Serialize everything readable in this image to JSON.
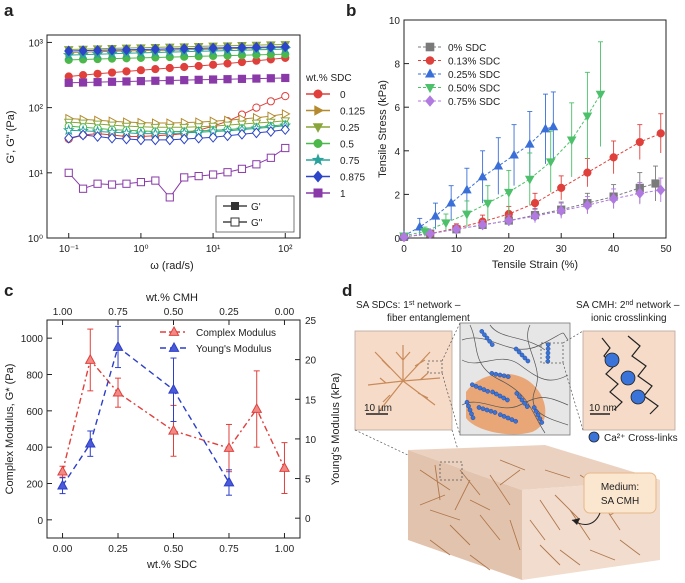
{
  "panels": {
    "a": "a",
    "b": "b",
    "c": "c",
    "d": "d"
  },
  "chart_data": [
    {
      "id": "a",
      "type": "scatter",
      "xlabel": "ω (rad/s)",
      "ylabel": "G', G\" (Pa)",
      "xscale": "log",
      "yscale": "log",
      "xlim": [
        0.05,
        160
      ],
      "ylim": [
        1,
        1300
      ],
      "xticks": [
        "10⁻¹",
        "10⁰",
        "10¹",
        "10²"
      ],
      "yticks": [
        "10⁰",
        "10¹",
        "10²",
        "10³"
      ],
      "legend_title": "wt.% SDC",
      "legend2": [
        "G'",
        "G\""
      ],
      "x": [
        0.1,
        0.158,
        0.251,
        0.398,
        0.631,
        1.0,
        1.585,
        2.512,
        3.981,
        6.31,
        10.0,
        15.85,
        25.12,
        39.81,
        63.1,
        100.0
      ],
      "series": [
        {
          "name": "0",
          "color": "#e0403c",
          "marker": "circle",
          "gp": [
            300,
            315,
            330,
            345,
            360,
            375,
            390,
            405,
            420,
            435,
            455,
            475,
            500,
            525,
            550,
            580
          ],
          "gpp": [
            33,
            38,
            40,
            38,
            36,
            36,
            37,
            38,
            40,
            45,
            52,
            62,
            78,
            100,
            125,
            150
          ]
        },
        {
          "name": "0.125",
          "color": "#b58a2e",
          "marker": "triangle-right",
          "gp": [
            700,
            710,
            720,
            730,
            740,
            750,
            755,
            760,
            770,
            780,
            790,
            800,
            810,
            820,
            830,
            840
          ],
          "gpp": [
            68,
            66,
            64,
            62,
            60,
            59,
            58,
            58,
            59,
            60,
            62,
            64,
            67,
            70,
            74,
            80
          ]
        },
        {
          "name": "0.25",
          "color": "#8aa63a",
          "marker": "triangle-down",
          "gp": [
            780,
            790,
            800,
            810,
            820,
            830,
            840,
            850,
            860,
            870,
            880,
            890,
            900,
            910,
            920,
            930
          ],
          "gpp": [
            60,
            58,
            56,
            54,
            52,
            51,
            50,
            50,
            50,
            51,
            52,
            54,
            56,
            58,
            60,
            63
          ]
        },
        {
          "name": "0.5",
          "color": "#4cb84a",
          "marker": "circle",
          "gp": [
            540,
            548,
            556,
            564,
            572,
            580,
            588,
            596,
            604,
            612,
            620,
            628,
            636,
            644,
            652,
            660
          ],
          "gpp": [
            52,
            50,
            48,
            46,
            45,
            44,
            43,
            43,
            43,
            44,
            45,
            46,
            48,
            50,
            52,
            55
          ]
        },
        {
          "name": "0.75",
          "color": "#2aa39c",
          "marker": "star",
          "gp": [
            640,
            650,
            660,
            670,
            680,
            690,
            700,
            710,
            720,
            730,
            740,
            750,
            760,
            770,
            780,
            790
          ],
          "gpp": [
            45,
            44,
            43,
            42,
            41,
            40,
            40,
            40,
            41,
            42,
            43,
            44,
            46,
            48,
            50,
            53
          ]
        },
        {
          "name": "0.875",
          "color": "#2d45c8",
          "marker": "diamond",
          "gp": [
            740,
            748,
            756,
            764,
            772,
            780,
            788,
            796,
            804,
            812,
            820,
            828,
            836,
            844,
            852,
            860
          ],
          "gpp": [
            34,
            38,
            36,
            34,
            33,
            32,
            32,
            32,
            33,
            34,
            35,
            37,
            39,
            41,
            43,
            46
          ]
        },
        {
          "name": "1",
          "color": "#8a3aa8",
          "marker": "square",
          "gp": [
            240,
            243,
            246,
            249,
            252,
            255,
            258,
            261,
            264,
            267,
            270,
            273,
            276,
            279,
            282,
            285
          ],
          "gpp": [
            10,
            5.7,
            6.8,
            6.6,
            6.8,
            7.2,
            7.6,
            4.2,
            8.5,
            8.9,
            9.4,
            10.2,
            11.5,
            13.5,
            17.0,
            24.0
          ]
        }
      ]
    },
    {
      "id": "b",
      "type": "line",
      "xlabel": "Tensile Strain (%)",
      "ylabel": "Tensile Stress (kPa)",
      "xlim": [
        0,
        50
      ],
      "ylim": [
        0,
        10
      ],
      "xticks": [
        "0",
        "10",
        "20",
        "30",
        "40",
        "50"
      ],
      "yticks": [
        "0",
        "2",
        "4",
        "6",
        "8",
        "10"
      ],
      "series": [
        {
          "name": "0% SDC",
          "color": "#7a7a7a",
          "marker": "square",
          "points": [
            [
              0,
              0.05
            ],
            [
              5,
              0.2
            ],
            [
              10,
              0.4
            ],
            [
              15,
              0.6
            ],
            [
              20,
              0.8
            ],
            [
              25,
              1.05
            ],
            [
              30,
              1.3
            ],
            [
              35,
              1.6
            ],
            [
              40,
              1.9
            ],
            [
              45,
              2.3
            ],
            [
              48,
              2.5
            ]
          ],
          "err": [
            0.05,
            0.1,
            0.15,
            0.2,
            0.25,
            0.3,
            0.35,
            0.45,
            0.55,
            0.7,
            0.8
          ]
        },
        {
          "name": "0.13% SDC",
          "color": "#e0403c",
          "marker": "circle",
          "points": [
            [
              0,
              0.05
            ],
            [
              5,
              0.2
            ],
            [
              10,
              0.45
            ],
            [
              15,
              0.75
            ],
            [
              20,
              1.1
            ],
            [
              25,
              1.6
            ],
            [
              30,
              2.3
            ],
            [
              35,
              3.0
            ],
            [
              40,
              3.7
            ],
            [
              45,
              4.4
            ],
            [
              49,
              4.8
            ]
          ],
          "err": [
            0.05,
            0.1,
            0.2,
            0.3,
            0.35,
            0.45,
            0.55,
            0.65,
            0.75,
            0.8,
            0.9
          ]
        },
        {
          "name": "0.25% SDC",
          "color": "#3a6fd8",
          "marker": "triangle-up",
          "points": [
            [
              0,
              0.1
            ],
            [
              3,
              0.5
            ],
            [
              6,
              1.0
            ],
            [
              9,
              1.6
            ],
            [
              12,
              2.2
            ],
            [
              15,
              2.8
            ],
            [
              18,
              3.3
            ],
            [
              21,
              3.8
            ],
            [
              24,
              4.3
            ],
            [
              27,
              5.0
            ],
            [
              28.5,
              5.1
            ]
          ],
          "err": [
            0.1,
            0.4,
            0.6,
            0.8,
            1.0,
            1.2,
            1.3,
            1.4,
            1.5,
            1.6,
            1.6
          ]
        },
        {
          "name": "0.50% SDC",
          "color": "#4cc06a",
          "marker": "triangle-down",
          "points": [
            [
              0,
              0.1
            ],
            [
              4,
              0.3
            ],
            [
              8,
              0.7
            ],
            [
              12,
              1.1
            ],
            [
              16,
              1.6
            ],
            [
              20,
              2.1
            ],
            [
              24,
              2.7
            ],
            [
              28,
              3.5
            ],
            [
              32,
              4.5
            ],
            [
              35,
              5.6
            ],
            [
              37.5,
              6.6
            ]
          ],
          "err": [
            0.1,
            0.2,
            0.4,
            0.6,
            0.8,
            1.0,
            1.2,
            1.4,
            1.7,
            2.0,
            2.4
          ]
        },
        {
          "name": "0.75% SDC",
          "color": "#b07ae0",
          "marker": "diamond",
          "points": [
            [
              0,
              0.05
            ],
            [
              5,
              0.2
            ],
            [
              10,
              0.4
            ],
            [
              15,
              0.6
            ],
            [
              20,
              0.8
            ],
            [
              25,
              1.0
            ],
            [
              30,
              1.25
            ],
            [
              35,
              1.5
            ],
            [
              40,
              1.8
            ],
            [
              45,
              2.05
            ],
            [
              49,
              2.2
            ]
          ],
          "err": [
            0.05,
            0.1,
            0.15,
            0.2,
            0.25,
            0.3,
            0.35,
            0.4,
            0.45,
            0.5,
            0.55
          ]
        }
      ]
    },
    {
      "id": "c",
      "type": "line",
      "xlabel": "wt.% SDC",
      "top_xlabel": "wt.% CMH",
      "ylabel": "Complex Modulus, G* (Pa)",
      "y2label": "Young's Modulus (kPa)",
      "xlim": [
        -0.07,
        1.07
      ],
      "ylim": [
        -100,
        1100
      ],
      "y2lim": [
        -2.5,
        25
      ],
      "xticks": [
        "0.00",
        "0.25",
        "0.50",
        "0.75",
        "1.00"
      ],
      "top_xticks": [
        "1.00",
        "0.75",
        "0.50",
        "0.25",
        "0.00"
      ],
      "yticks": [
        "0",
        "200",
        "400",
        "600",
        "800",
        "1000"
      ],
      "y2ticks": [
        "0",
        "5",
        "10",
        "15",
        "20",
        "25"
      ],
      "series": [
        {
          "name": "Complex Modulus",
          "color": "#e0403c",
          "axis": "left",
          "marker": "triangle-up",
          "dash": "6,3,2,3",
          "x": [
            0,
            0.125,
            0.25,
            0.5,
            0.75,
            0.875,
            1.0
          ],
          "values": [
            265,
            880,
            700,
            490,
            395,
            610,
            285
          ],
          "err": [
            30,
            170,
            80,
            140,
            130,
            210,
            140
          ]
        },
        {
          "name": "Young's Modulus",
          "color": "#2d3fc8",
          "axis": "right",
          "marker": "triangle-up",
          "dash": "6,4",
          "x": [
            0,
            0.125,
            0.25,
            0.5,
            0.75
          ],
          "values": [
            4.1,
            9.4,
            21.6,
            16.2,
            4.5
          ],
          "err": [
            1.0,
            1.6,
            2.6,
            4.0,
            1.6
          ]
        }
      ]
    }
  ],
  "diagram": {
    "left_title_line1": "SA SDCs: 1",
    "left_title_sup": "st",
    "left_title_rest": " network –",
    "left_title_line2": "fiber entanglement",
    "right_title_line1": "SA CMH: 2",
    "right_title_sup": "nd",
    "right_title_rest": " network –",
    "right_title_line2": "ionic crosslinking",
    "scale_left": "10 µm",
    "scale_right": "10 nm",
    "crosslink_label": "Ca²⁺ Cross-links",
    "medium_label_line1": "Medium:",
    "medium_label_line2": "SA CMH"
  },
  "colors": {
    "diagram_bg": "#f6dcc8",
    "fiber": "#c98a5a",
    "blob": "#e9a677",
    "ion": "#3a74d8"
  }
}
